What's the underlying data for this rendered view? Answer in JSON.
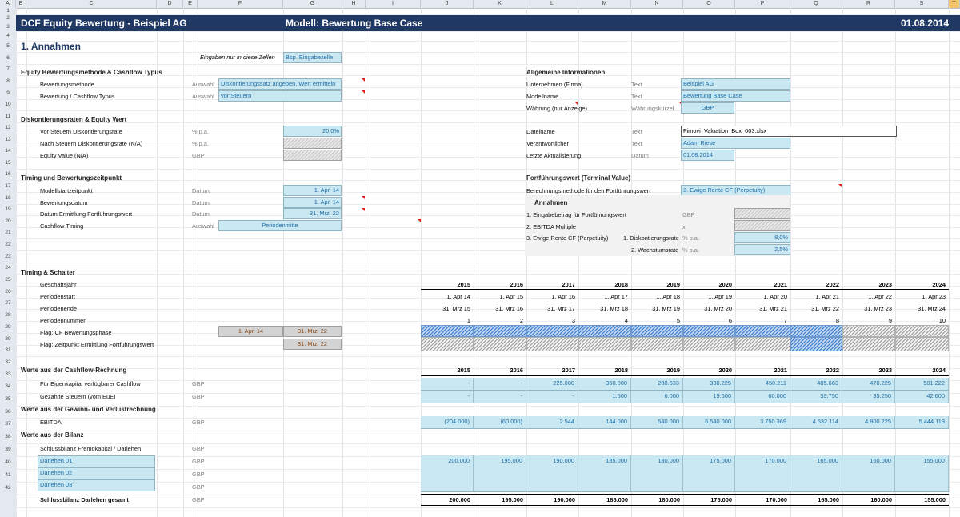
{
  "columns": [
    "A",
    "B",
    "C",
    "D",
    "E",
    "F",
    "G",
    "H",
    "I",
    "J",
    "K",
    "L",
    "M",
    "N",
    "O",
    "P",
    "Q",
    "R",
    "S",
    "T"
  ],
  "rows": [
    "1",
    "2",
    "3",
    "4",
    "5",
    "6",
    "7",
    "8",
    "9",
    "10",
    "11",
    "12",
    "13",
    "14",
    "15",
    "16",
    "17",
    "18",
    "19",
    "20",
    "21",
    "22",
    "23",
    "24",
    "25",
    "26",
    "27",
    "28",
    "29",
    "30",
    "31",
    "32",
    "33",
    "34",
    "35",
    "36",
    "37",
    "38",
    "39",
    "40",
    "41",
    "42"
  ],
  "header": {
    "left": "DCF Equity Bewertung -  Beispiel AG",
    "middle": "Modell: Bewertung Base Case",
    "date": "01.08.2014"
  },
  "section_title": "1. Annahmen",
  "input_hint": {
    "label": "Eingaben nur in diese Zellen",
    "example": "Bsp. Eingabezelle"
  },
  "equity_method": {
    "title": "Equity Bewertungsmethode  & Cashflow Typus",
    "rows": [
      {
        "label": "Bewertungsmethode",
        "unit": "Auswahl",
        "value": "Diskontierungssatz angeben, Wert ermitteln"
      },
      {
        "label": "Bewertung  / Cashflow Typus",
        "unit": "Auswahl",
        "value": "vor Steuern"
      }
    ]
  },
  "discount": {
    "title": "Diskontierungsraten & Equity Wert",
    "rows": [
      {
        "label": "Vor Steuern Diskontierungsrate",
        "unit": "% p.a.",
        "value": "20,0%"
      },
      {
        "label": "Nach Steuern Diskontierungsrate  (N/A)",
        "unit": "% p.a.",
        "value": ""
      },
      {
        "label": "Equity Value (N/A)",
        "unit": "GBP",
        "value": ""
      }
    ]
  },
  "timing": {
    "title": "Timing und Bewertungszeitpunkt",
    "rows": [
      {
        "label": "Modellstartzeitpunkt",
        "unit": "Datum",
        "value": "1. Apr. 14"
      },
      {
        "label": "Bewertungsdatum",
        "unit": "Datum",
        "value": "1. Apr. 14"
      },
      {
        "label": "Datum Ermittlung Fortführungswert",
        "unit": "Datum",
        "value": "31. Mrz. 22"
      },
      {
        "label": "Cashflow Timing",
        "unit": "Auswahl",
        "value": "Periodenmitte"
      }
    ]
  },
  "general": {
    "title": "Allgemeine Informationen",
    "rows": [
      {
        "label": "Unternehmen (Firma)",
        "unit": "Text",
        "value": "Beispiel AG"
      },
      {
        "label": "Modellname",
        "unit": "Text",
        "value": "Bewertung Base Case"
      },
      {
        "label": "Währung (nur Anzeige)",
        "unit": "Währungskürzel",
        "value": "GBP"
      }
    ],
    "file_rows": [
      {
        "label": "Dateiname",
        "unit": "Text",
        "value": "Fimovi_Valuation_Box_003.xlsx"
      },
      {
        "label": "Verantwortlicher",
        "unit": "Text",
        "value": "Adam Riese"
      },
      {
        "label": "Letzte Aktualisierung",
        "unit": "Datum",
        "value": "01.08.2014"
      }
    ]
  },
  "terminal": {
    "title": "Fortführungswert (Terminal Value)",
    "method_label": "Berechnungsmethode für den Fortführungswert",
    "method_value": "3. Ewige Rente CF (Perpetuity)",
    "assumptions_title": "Annahmen",
    "a1_label": "1. Eingabebetrag für Fortführungswert",
    "a1_unit": "GBP",
    "a2_label": "2. EBITDA Multiple",
    "a2_unit": "x",
    "a3_label": "3. Ewige Rente CF (Perpetuity)",
    "a3_sub1": "1. Diskontierungsrate",
    "a3_unit1": "% p.a.",
    "a3_val1": "8,0%",
    "a3_sub2": "2. Wachstumsrate",
    "a3_unit2": "% p.a.",
    "a3_val2": "2,5%"
  },
  "timing_switch": {
    "title": "Timing & Schalter",
    "labels": {
      "year": "Geschäftsjahr",
      "start": "Periodenstart",
      "end": "Periodenende",
      "num": "Periodennummer",
      "flag1": "Flag: CF Bewertungsphase",
      "flag2": "Flag: Zeitpunkt Ermittlung Fortführungswert"
    },
    "flag1_start": "1. Apr. 14",
    "flag1_end": "31. Mrz. 22",
    "flag2_end": "31. Mrz. 22",
    "years": [
      "2015",
      "2016",
      "2017",
      "2018",
      "2019",
      "2020",
      "2021",
      "2022",
      "2023",
      "2024"
    ],
    "starts": [
      "1. Apr 14",
      "1. Apr 15",
      "1. Apr 16",
      "1. Apr 17",
      "1. Apr 18",
      "1. Apr 19",
      "1. Apr 20",
      "1. Apr 21",
      "1. Apr 22",
      "1. Apr 23"
    ],
    "ends": [
      "31. Mrz 15",
      "31. Mrz 16",
      "31. Mrz 17",
      "31. Mrz 18",
      "31. Mrz 19",
      "31. Mrz 20",
      "31. Mrz 21",
      "31. Mrz 22",
      "31. Mrz 23",
      "31. Mrz 24"
    ],
    "nums": [
      "1",
      "2",
      "3",
      "4",
      "5",
      "6",
      "7",
      "8",
      "9",
      "10"
    ],
    "flag1": [
      1,
      1,
      1,
      1,
      1,
      1,
      1,
      1,
      0,
      0
    ],
    "flag2": [
      0,
      0,
      0,
      0,
      0,
      0,
      0,
      1,
      0,
      0
    ]
  },
  "cashflow": {
    "title": "Werte aus der Cashflow-Rechnung",
    "years": [
      "2015",
      "2016",
      "2017",
      "2018",
      "2019",
      "2020",
      "2021",
      "2022",
      "2023",
      "2024"
    ],
    "rows": [
      {
        "label": "Für Eigenkapital verfügbarer Cashflow",
        "unit": "GBP",
        "values": [
          "-",
          "-",
          "225.000",
          "360.000",
          "288.633",
          "330.225",
          "450.211",
          "485.663",
          "470.225",
          "501.222"
        ]
      },
      {
        "label": "Gezahlte Steuern (vom EuE)",
        "unit": "GBP",
        "values": [
          "-",
          "-",
          "-",
          "1.500",
          "6.000",
          "19.500",
          "60.000",
          "39.750",
          "35.250",
          "42.600"
        ]
      }
    ]
  },
  "pl": {
    "title": "Werte aus der Gewinn- und Verlustrechnung",
    "rows": [
      {
        "label": "EBITDA",
        "unit": "GBP",
        "values": [
          "(204.000)",
          "(60.000)",
          "2.544",
          "144.000",
          "540.000",
          "6.540.000",
          "3.750.369",
          "4.532.114",
          "4.800.225",
          "5.444.119"
        ]
      }
    ]
  },
  "balance": {
    "title": "Werte aus der Bilanz",
    "subtitle": "Schlussbilanz Fremdkapital / Darlehen",
    "subtitle_unit": "GBP",
    "rows": [
      {
        "label": "Darlehen 01",
        "unit": "GBP",
        "values": [
          "200.000",
          "195.000",
          "190.000",
          "185.000",
          "180.000",
          "175.000",
          "170.000",
          "165.000",
          "160.000",
          "155.000"
        ]
      },
      {
        "label": "Darlehen 02",
        "unit": "GBP",
        "values": [
          "",
          "",
          "",
          "",
          "",
          "",
          "",
          "",
          "",
          ""
        ]
      },
      {
        "label": "Darlehen 03",
        "unit": "GBP",
        "values": [
          "",
          "",
          "",
          "",
          "",
          "",
          "",
          "",
          "",
          ""
        ]
      }
    ],
    "total": {
      "label": "Schlussbilanz Darlehen gesamt",
      "unit": "GBP",
      "values": [
        "200.000",
        "195.000",
        "190.000",
        "185.000",
        "180.000",
        "175.000",
        "170.000",
        "165.000",
        "160.000",
        "155.000"
      ]
    }
  }
}
